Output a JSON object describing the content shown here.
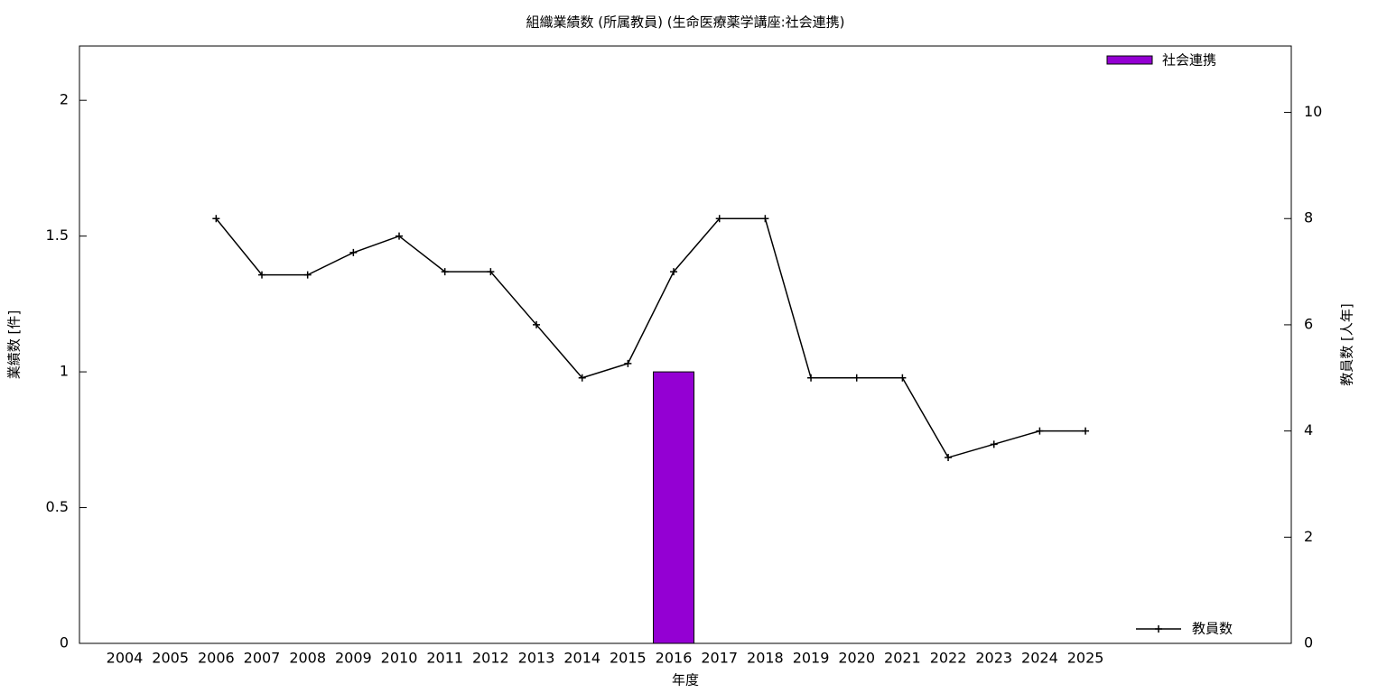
{
  "chart_data": {
    "type": "bar-line",
    "title": "組織業績数 (所属教員) (生命医療薬学講座:社会連携)",
    "xlabel": "年度",
    "ylabel": "業績数 [件]",
    "y2label": "教員数 [人年]",
    "categories": [
      "2004",
      "2005",
      "2006",
      "2007",
      "2008",
      "2009",
      "2010",
      "2011",
      "2012",
      "2013",
      "2014",
      "2015",
      "2016",
      "2017",
      "2018",
      "2019",
      "2020",
      "2021",
      "2022",
      "2023",
      "2024",
      "2025"
    ],
    "series": [
      {
        "name": "社会連携",
        "type": "bar",
        "color": "#9400d3",
        "values": [
          0,
          0,
          0,
          0,
          0,
          0,
          0,
          0,
          0,
          0,
          0,
          0,
          1,
          0,
          0,
          0,
          0,
          0,
          0,
          0,
          0,
          0
        ]
      },
      {
        "name": "教員数",
        "type": "line",
        "axis": "y2",
        "color": "#000000",
        "values": [
          null,
          null,
          8,
          6.94,
          6.94,
          7.36,
          7.67,
          7,
          7,
          6,
          5,
          5.27,
          7,
          8,
          8,
          5,
          5,
          5,
          3.5,
          3.75,
          4,
          4
        ]
      }
    ],
    "ylim": [
      0,
      2.2
    ],
    "yticks": [
      0,
      0.5,
      1,
      1.5,
      2
    ],
    "y2lim": [
      0,
      11.25
    ],
    "y2ticks": [
      0,
      2,
      4,
      6,
      8,
      10
    ],
    "grid": false
  }
}
